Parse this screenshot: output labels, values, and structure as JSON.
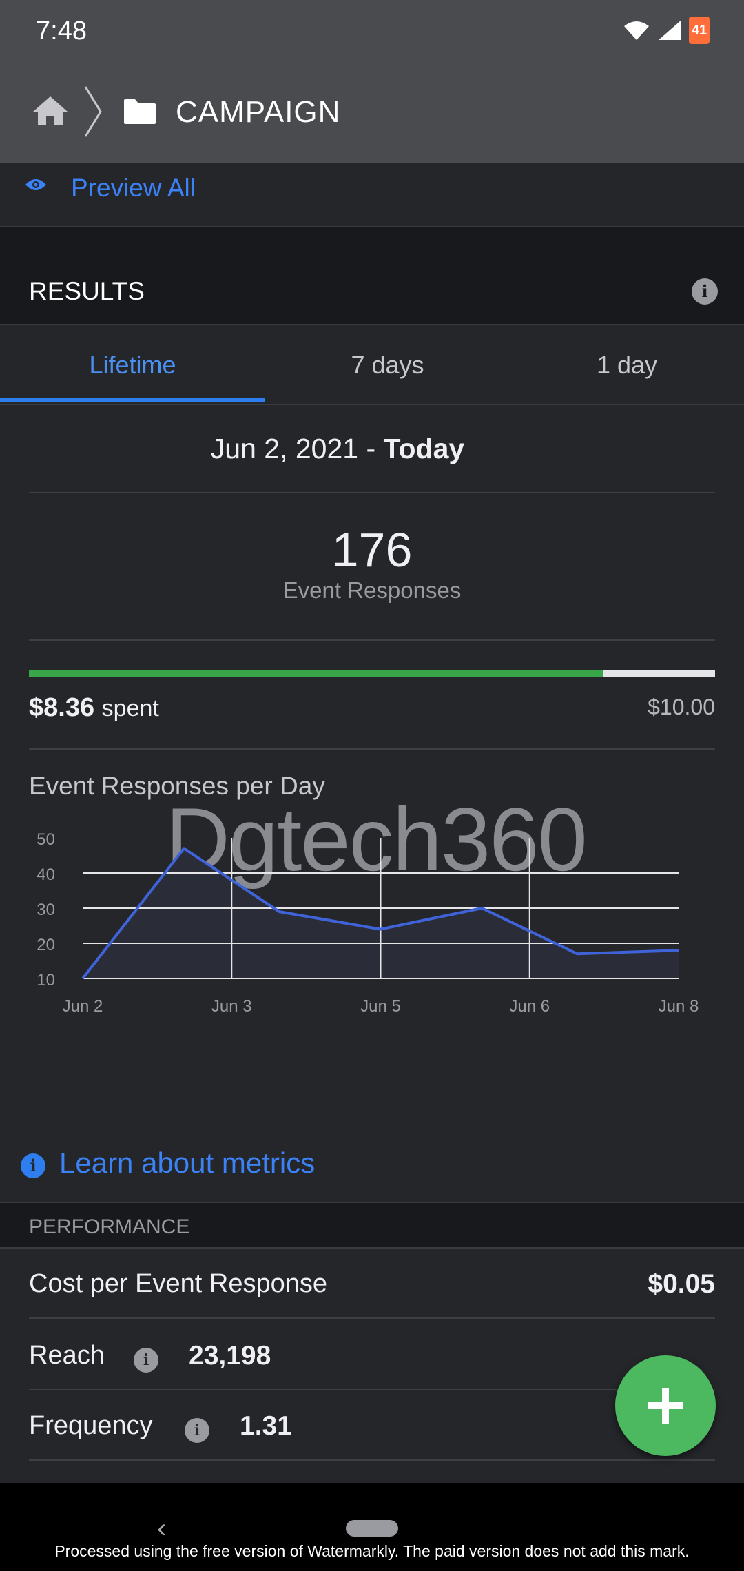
{
  "status": {
    "time": "7:48",
    "battery": "41"
  },
  "header": {
    "title": "CAMPAIGN"
  },
  "preview": {
    "label": "Preview All"
  },
  "results": {
    "title": "RESULTS",
    "tabs": [
      {
        "label": "Lifetime"
      },
      {
        "label": "7 days"
      },
      {
        "label": "1 day"
      }
    ],
    "range_start": "Jun 2, 2021 - ",
    "range_end": "Today",
    "count": "176",
    "count_label": "Event Responses",
    "spent_amount": "$8.36",
    "spent_label": "spent",
    "budget": "$10.00",
    "budget_progress": 0.836
  },
  "watermark_text": "Dgtech360",
  "chart_data": {
    "type": "area",
    "title": "Event Responses per Day",
    "x_labels": [
      "Jun 2",
      "Jun 3",
      "Jun 5",
      "Jun 6",
      "Jun 8"
    ],
    "y_ticks": [
      10,
      20,
      30,
      40,
      50
    ],
    "ylim": [
      10,
      50
    ],
    "points": [
      {
        "x": 0,
        "y": 10
      },
      {
        "x": 0.68,
        "y": 47
      },
      {
        "x": 1.32,
        "y": 29
      },
      {
        "x": 2.0,
        "y": 24
      },
      {
        "x": 2.68,
        "y": 30
      },
      {
        "x": 3.32,
        "y": 17
      },
      {
        "x": 4.0,
        "y": 18
      }
    ],
    "line_color": "#3f63d8",
    "fill_color": "#2a2d38",
    "grid": true
  },
  "learn": {
    "label": "Learn about metrics"
  },
  "performance": {
    "title": "PERFORMANCE",
    "cost_label": "Cost per Event Response",
    "cost_value": "$0.05",
    "reach_label": "Reach",
    "reach_value": "23,198",
    "frequency_label": "Frequency",
    "frequency_value": "1.31"
  },
  "footer": {
    "watermark": "Processed using the free version of Watermarkly. The paid version does not add this mark."
  },
  "colors": {
    "accent": "#2f7ef0",
    "success": "#3aa64a",
    "fab": "#4cb860"
  }
}
